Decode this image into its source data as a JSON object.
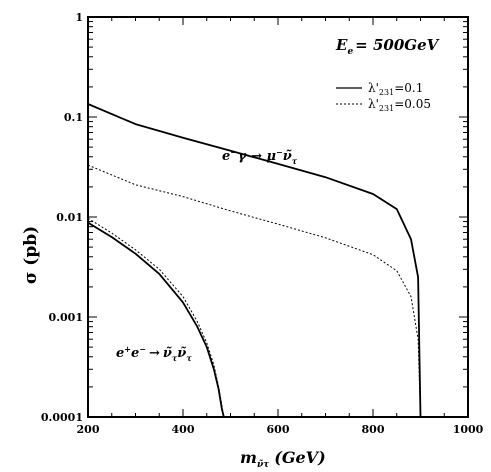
{
  "chart_data": {
    "type": "line",
    "xlabel": "m",
    "xlabel_sub": "ν̃τ",
    "xlabel_unit": "(GeV)",
    "ylabel": "σ (pb)",
    "xlim": [
      200,
      1000
    ],
    "ylim": [
      0.0001,
      1
    ],
    "y_scale": "log",
    "grid": false,
    "legend_position": "top-right",
    "x_ticks": [
      200,
      400,
      600,
      800,
      1000
    ],
    "x_tick_labels": [
      "200",
      "400",
      "600",
      "800",
      "1000"
    ],
    "y_ticks": [
      0.0001,
      0.001,
      0.01,
      0.1,
      1
    ],
    "y_tick_labels": [
      "0.0001",
      "0.001",
      "0.01",
      "0.1",
      "1"
    ],
    "energy_label": "E",
    "energy_label_sub": "e",
    "energy_label_value": "= 500GeV",
    "legend": [
      {
        "prefix": "λ'",
        "sub": "231",
        "suffix": "=0.1",
        "style": "solid"
      },
      {
        "prefix": "λ'",
        "sub": "231",
        "suffix": "=0.05",
        "style": "dashed"
      }
    ],
    "annotations": {
      "egamma_a": "e",
      "egamma_a_sup": "−",
      "egamma_b": "γ → μ",
      "egamma_b_sup": "−",
      "egamma_c": "ν̃",
      "egamma_c_sub": "τ",
      "ee_a": "e",
      "ee_a_sup": "+",
      "ee_b": "e",
      "ee_b_sup": "−",
      "ee_arrow": "→",
      "ee_c": "ν̃",
      "ee_c_sub": "τ",
      "ee_d": "ν̃",
      "ee_d_sub": "τ"
    },
    "series": [
      {
        "style": "solid",
        "x": [
          200,
          300,
          400,
          500,
          600,
          700,
          800,
          850,
          880,
          895,
          900
        ],
        "y": [
          0.135,
          0.085,
          0.062,
          0.046,
          0.034,
          0.025,
          0.017,
          0.012,
          0.006,
          0.0025,
          0.0001
        ]
      },
      {
        "style": "dashed",
        "x": [
          200,
          300,
          400,
          500,
          600,
          700,
          800,
          850,
          880,
          895,
          900
        ],
        "y": [
          0.033,
          0.021,
          0.016,
          0.0115,
          0.0085,
          0.0062,
          0.0042,
          0.0029,
          0.0016,
          0.0006,
          0.0001
        ]
      },
      {
        "style": "solid",
        "x": [
          200,
          250,
          300,
          350,
          400,
          430,
          450,
          465,
          475,
          482,
          486
        ],
        "y": [
          0.0088,
          0.0063,
          0.0043,
          0.0027,
          0.0014,
          0.0008,
          0.0005,
          0.0003,
          0.00019,
          0.00012,
          0.0001
        ]
      },
      {
        "style": "dashed",
        "x": [
          200,
          250,
          300,
          350,
          400,
          430,
          450,
          465,
          475,
          482,
          486
        ],
        "y": [
          0.0097,
          0.0069,
          0.0047,
          0.003,
          0.0016,
          0.0009,
          0.00055,
          0.00033,
          0.0002,
          0.00013,
          0.0001
        ]
      }
    ]
  }
}
